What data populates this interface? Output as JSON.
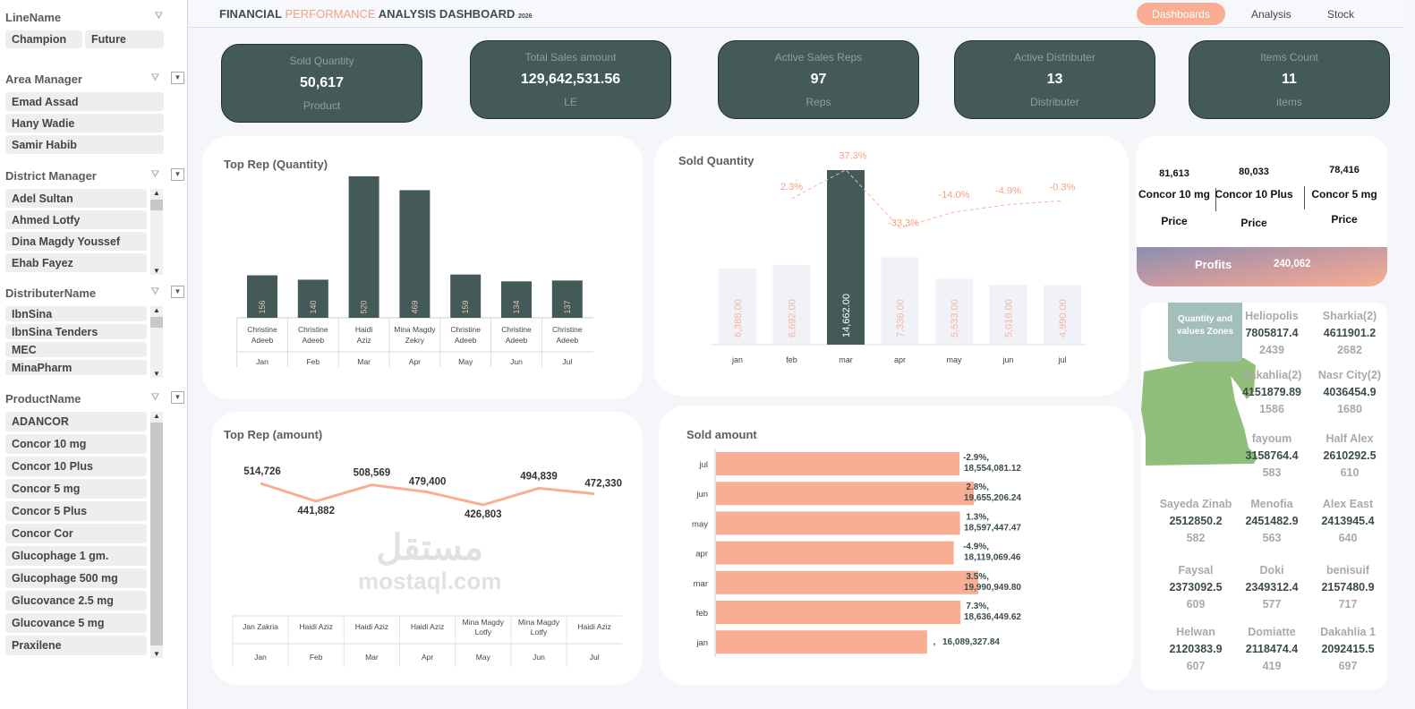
{
  "header": {
    "title_part1": "FINANCIAL ",
    "title_part2": "PERFORMANCE",
    "title_part3": " ANALYSIS DASHBOARD",
    "year": "2026",
    "nav": [
      {
        "label": "Dashboards",
        "active": true
      },
      {
        "label": "Analysis"
      },
      {
        "label": "Stock"
      }
    ]
  },
  "sidebar": {
    "slicers": [
      {
        "title": "LineName",
        "dropdown": false,
        "items": [
          "Champion",
          "Future"
        ]
      },
      {
        "title": "Area Manager",
        "dropdown": true,
        "items": [
          "Emad Assad",
          "Hany Wadie",
          "Samir Habib"
        ]
      },
      {
        "title": "District Manager",
        "dropdown": true,
        "scroll": true,
        "items": [
          "Adel Sultan",
          "Ahmed Lotfy",
          "Dina Magdy Youssef",
          "Ehab Fayez"
        ]
      },
      {
        "title": "DistributerName",
        "dropdown": true,
        "scroll": true,
        "items": [
          "IbnSina",
          "IbnSina Tenders",
          "MEC",
          "MinaPharm"
        ]
      },
      {
        "title": "ProductName",
        "dropdown": true,
        "scroll": true,
        "items": [
          "ADANCOR",
          "Concor 10 mg",
          "Concor 10 Plus",
          "Concor 5 mg",
          "Concor 5 Plus",
          "Concor Cor",
          "Glucophage 1 gm.",
          "Glucophage 500 mg",
          "Glucovance 2.5 mg",
          "Glucovance 5 mg",
          "Praxilene"
        ]
      }
    ]
  },
  "kpis": [
    {
      "label": "Sold Quantity",
      "value": "50,617",
      "unit": "Product"
    },
    {
      "label": "Total Sales amount",
      "value": "129,642,531.56",
      "unit": "LE"
    },
    {
      "label": "Active Sales Reps",
      "value": "97",
      "unit": "Reps"
    },
    {
      "label": "Active Distributer",
      "value": "13",
      "unit": "Distributer"
    },
    {
      "label": "Items Count",
      "value": "11",
      "unit": "items"
    }
  ],
  "colors": {
    "accent": "#f9ad93",
    "dark": "#435a58",
    "bar_light": "#f1f2f7",
    "map": "#8fbf7a",
    "zone_box": "#a3bfb9"
  },
  "chart_data": [
    {
      "type": "bar",
      "title": "Top Rep (Quantity)",
      "categories": [
        "Jan",
        "Feb",
        "Mar",
        "Apr",
        "May",
        "Jun",
        "Jul"
      ],
      "reps": [
        "Christine Adeeb",
        "Christine Adeeb",
        "Haidi Aziz",
        "Mina Magdy Zekry",
        "Christine Adeeb",
        "Christine Adeeb",
        "Christine Adeeb"
      ],
      "values": [
        156,
        140,
        520,
        469,
        159,
        134,
        137
      ]
    },
    {
      "type": "bar",
      "title": "Sold Quantity",
      "categories": [
        "jan",
        "feb",
        "mar",
        "apr",
        "may",
        "jun",
        "jul"
      ],
      "values": [
        6388,
        6692,
        14662,
        7336,
        5533,
        5016,
        4990
      ],
      "value_labels": [
        "6,388.00",
        "6,692.00",
        "14,662.00",
        "7,336.00",
        "5,533.00",
        "5,016.00",
        "4,990.00"
      ],
      "highlight": "mar",
      "change": {
        "type": "line",
        "style": "dashed",
        "categories": [
          "feb",
          "mar",
          "apr",
          "may",
          "jun",
          "jul"
        ],
        "values": [
          2.3,
          37.3,
          -33.3,
          -14.0,
          -4.9,
          -0.3
        ],
        "labels": [
          "2.3%",
          "37.3%",
          "-33.3%",
          "-14.0%",
          "-4.9%",
          "-0.3%"
        ]
      }
    },
    {
      "type": "line",
      "title": "Top Rep (amount)",
      "categories": [
        "Jan",
        "Feb",
        "Mar",
        "Apr",
        "May",
        "Jun",
        "Jul"
      ],
      "reps": [
        "Jan Zakria",
        "Haidi Aziz",
        "Haidi Aziz",
        "Haidi Aziz",
        "Mina Magdy Lotfy",
        "Mina Magdy Lotfy",
        "Haidi Aziz"
      ],
      "values": [
        514726,
        441882,
        508569,
        479400,
        426803,
        494839,
        472330
      ],
      "value_labels": [
        "514,726",
        "441,882",
        "508,569",
        "479,400",
        "426,803",
        "494,839",
        "472,330"
      ]
    },
    {
      "type": "bar",
      "orientation": "horizontal",
      "title": "Sold amount",
      "categories": [
        "jul",
        "jun",
        "may",
        "apr",
        "mar",
        "feb",
        "jan"
      ],
      "values": [
        18554081.12,
        19655206.24,
        18597447.47,
        18119069.46,
        19990949.8,
        18636449.62,
        16089327.84
      ],
      "change_labels": [
        "-2.9%,",
        "2.8%,",
        "1.3%,",
        "-4.9%,",
        "3.5%,",
        "7.3%,",
        ","
      ],
      "value_labels": [
        "18,554,081.12",
        "19,655,206.24",
        "18,597,447.47",
        "18,119,069.46",
        "19,990,949.80",
        "18,636,449.62",
        "16,089,327.84"
      ]
    }
  ],
  "top_products": [
    {
      "value": "81,613",
      "name": "Concor 10 mg",
      "sub": "Price"
    },
    {
      "value": "80,033",
      "name": "Concor 10 Plus",
      "sub": "Price"
    },
    {
      "value": "78,416",
      "name": "Concor 5 mg",
      "sub": "Price"
    }
  ],
  "profits": {
    "label": "Profits",
    "value": "240,062"
  },
  "zones_title": "Quantity and values Zones",
  "zones": [
    {
      "name": "Heliopolis",
      "amount": "7805817.4",
      "qty": "2439"
    },
    {
      "name": "Sharkia(2)",
      "amount": "4611901.2",
      "qty": "2682"
    },
    {
      "name": "Dakahlia(2)",
      "amount": "4151879.89",
      "qty": "1586"
    },
    {
      "name": "Nasr City(2)",
      "amount": "4036454.9",
      "qty": "1680"
    },
    {
      "name": "fayoum",
      "amount": "3158764.4",
      "qty": "583"
    },
    {
      "name": "Half Alex",
      "amount": "2610292.5",
      "qty": "610"
    },
    {
      "name": "Sayeda Zinab",
      "amount": "2512850.2",
      "qty": "582"
    },
    {
      "name": "Menofia",
      "amount": "2451482.9",
      "qty": "563"
    },
    {
      "name": "Alex East",
      "amount": "2413945.4",
      "qty": "640"
    },
    {
      "name": "Faysal",
      "amount": "2373092.5",
      "qty": "609"
    },
    {
      "name": "Doki",
      "amount": "2349312.4",
      "qty": "577"
    },
    {
      "name": "benisuif",
      "amount": "2157480.9",
      "qty": "717"
    },
    {
      "name": "Helwan",
      "amount": "2120383.9",
      "qty": "607"
    },
    {
      "name": "Domiatte",
      "amount": "2118474.4",
      "qty": "419"
    },
    {
      "name": "Dakahlia 1",
      "amount": "2092415.5",
      "qty": "697"
    }
  ],
  "watermark": {
    "arabic": "مستقل",
    "latin": "mostaql.com"
  }
}
